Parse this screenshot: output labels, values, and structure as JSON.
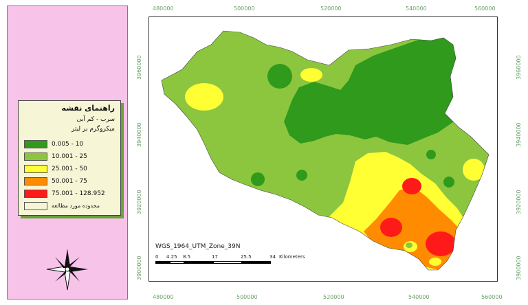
{
  "legend": {
    "title": "راهنمای نقشه",
    "subtitle1": "سرب - کم آبی",
    "subtitle2": "میکروگرم بر لیتر",
    "items": [
      {
        "label": "0.005 - 10",
        "color": "#2f9a1c"
      },
      {
        "label": "10.001 - 25",
        "color": "#8cc63f"
      },
      {
        "label": "25.001 - 50",
        "color": "#ffff33"
      },
      {
        "label": "50.001 - 75",
        "color": "#ff8c00"
      },
      {
        "label": "75.001 - 128.952",
        "color": "#ff1a1a"
      },
      {
        "label": "محدوده مورد مطالعه",
        "color": "#f6f6d6"
      }
    ]
  },
  "map": {
    "projection": "WGS_1964_UTM_Zone_39N",
    "x_ticks": [
      "480000",
      "500000",
      "520000",
      "540000",
      "560000"
    ],
    "y_ticks": [
      "3960000",
      "3940000",
      "3920000",
      "3900000"
    ],
    "scale": {
      "labels": [
        "0",
        "4.25",
        "8.5",
        "17",
        "25.5",
        "34"
      ],
      "unit": "Kilometers"
    }
  },
  "icons": {
    "north": "north-arrow-compass-icon"
  }
}
